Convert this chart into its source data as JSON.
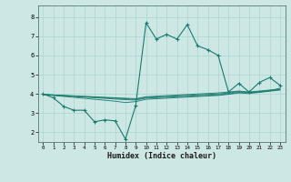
{
  "xlabel": "Humidex (Indice chaleur)",
  "background_color": "#cde8e4",
  "grid_color": "#b0d8d4",
  "line_color": "#1a7a6e",
  "xlim": [
    -0.5,
    23.5
  ],
  "ylim": [
    1.5,
    8.6
  ],
  "yticks": [
    2,
    3,
    4,
    5,
    6,
    7,
    8
  ],
  "xticks": [
    0,
    1,
    2,
    3,
    4,
    5,
    6,
    7,
    8,
    9,
    10,
    11,
    12,
    13,
    14,
    15,
    16,
    17,
    18,
    19,
    20,
    21,
    22,
    23
  ],
  "main_series": [
    [
      0,
      4.0
    ],
    [
      1,
      3.8
    ],
    [
      2,
      3.35
    ],
    [
      3,
      3.15
    ],
    [
      4,
      3.15
    ],
    [
      5,
      2.55
    ],
    [
      6,
      2.65
    ],
    [
      7,
      2.6
    ],
    [
      8,
      1.65
    ],
    [
      9,
      3.4
    ],
    [
      10,
      7.7
    ],
    [
      11,
      6.85
    ],
    [
      12,
      7.1
    ],
    [
      13,
      6.85
    ],
    [
      14,
      7.6
    ],
    [
      15,
      6.5
    ],
    [
      16,
      6.3
    ],
    [
      17,
      6.0
    ],
    [
      18,
      4.1
    ],
    [
      19,
      4.55
    ],
    [
      20,
      4.1
    ],
    [
      21,
      4.6
    ],
    [
      22,
      4.85
    ],
    [
      23,
      4.45
    ]
  ],
  "trend_series": [
    [
      [
        0,
        3.97
      ],
      [
        9,
        3.75
      ],
      [
        10,
        3.85
      ],
      [
        14,
        3.97
      ],
      [
        17,
        4.05
      ],
      [
        18,
        4.1
      ],
      [
        19,
        4.15
      ],
      [
        20,
        4.1
      ],
      [
        21,
        4.15
      ],
      [
        22,
        4.2
      ],
      [
        23,
        4.25
      ]
    ],
    [
      [
        0,
        3.97
      ],
      [
        9,
        3.72
      ],
      [
        10,
        3.82
      ],
      [
        17,
        4.0
      ],
      [
        18,
        4.05
      ],
      [
        19,
        4.12
      ],
      [
        20,
        4.08
      ],
      [
        21,
        4.12
      ],
      [
        22,
        4.18
      ],
      [
        23,
        4.22
      ]
    ],
    [
      [
        0,
        3.97
      ],
      [
        8,
        3.7
      ],
      [
        9,
        3.68
      ],
      [
        10,
        3.78
      ],
      [
        17,
        3.95
      ],
      [
        18,
        4.0
      ],
      [
        19,
        4.08
      ],
      [
        20,
        4.05
      ],
      [
        21,
        4.1
      ],
      [
        22,
        4.16
      ],
      [
        23,
        4.3
      ]
    ],
    [
      [
        0,
        3.97
      ],
      [
        7,
        3.62
      ],
      [
        8,
        3.55
      ],
      [
        9,
        3.6
      ],
      [
        10,
        3.72
      ],
      [
        17,
        3.92
      ],
      [
        18,
        3.98
      ],
      [
        19,
        4.05
      ],
      [
        20,
        4.02
      ],
      [
        21,
        4.08
      ],
      [
        22,
        4.14
      ],
      [
        23,
        4.2
      ]
    ]
  ]
}
